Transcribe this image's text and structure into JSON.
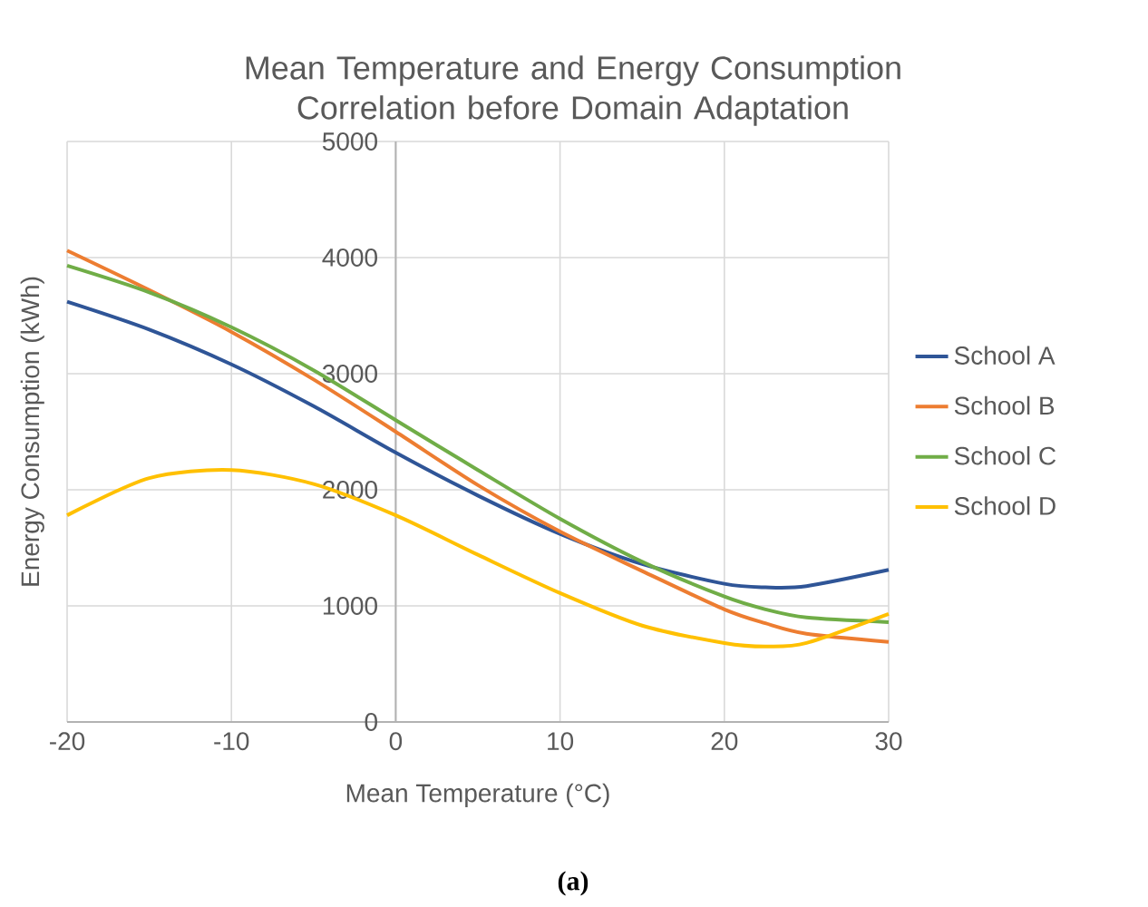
{
  "chart_data": {
    "type": "line",
    "title": "Mean Temperature and Energy Consumption Correlation before Domain Adaptation",
    "xlabel": "Mean Temperature (°C)",
    "ylabel": "Energy Consumption (kWh)",
    "annotations": [
      "(a)"
    ],
    "x": [
      -20,
      -15,
      -10,
      -5,
      0,
      5,
      10,
      15,
      20,
      22.5,
      25,
      30
    ],
    "series": [
      {
        "name": "School A",
        "color": "#2f5597",
        "values": [
          3620,
          3380,
          3080,
          2720,
          2320,
          1950,
          1620,
          1360,
          1190,
          1160,
          1170,
          1310
        ]
      },
      {
        "name": "School B",
        "color": "#ed7d31",
        "values": [
          4060,
          3720,
          3360,
          2950,
          2500,
          2040,
          1640,
          1300,
          970,
          850,
          760,
          690
        ]
      },
      {
        "name": "School C",
        "color": "#70ad47",
        "values": [
          3930,
          3700,
          3400,
          3030,
          2600,
          2170,
          1750,
          1380,
          1080,
          970,
          900,
          860
        ]
      },
      {
        "name": "School D",
        "color": "#ffc000",
        "values": [
          1780,
          2100,
          2170,
          2050,
          1780,
          1440,
          1110,
          830,
          680,
          650,
          680,
          930
        ]
      }
    ],
    "xlim": [
      -20,
      30
    ],
    "xticks": [
      -20,
      -10,
      0,
      10,
      20,
      30
    ],
    "ylim": [
      0,
      5000
    ],
    "yticks": [
      0,
      1000,
      2000,
      3000,
      4000,
      5000
    ],
    "grid": true,
    "legend": "right",
    "marker": "none",
    "line_style": "solid"
  }
}
